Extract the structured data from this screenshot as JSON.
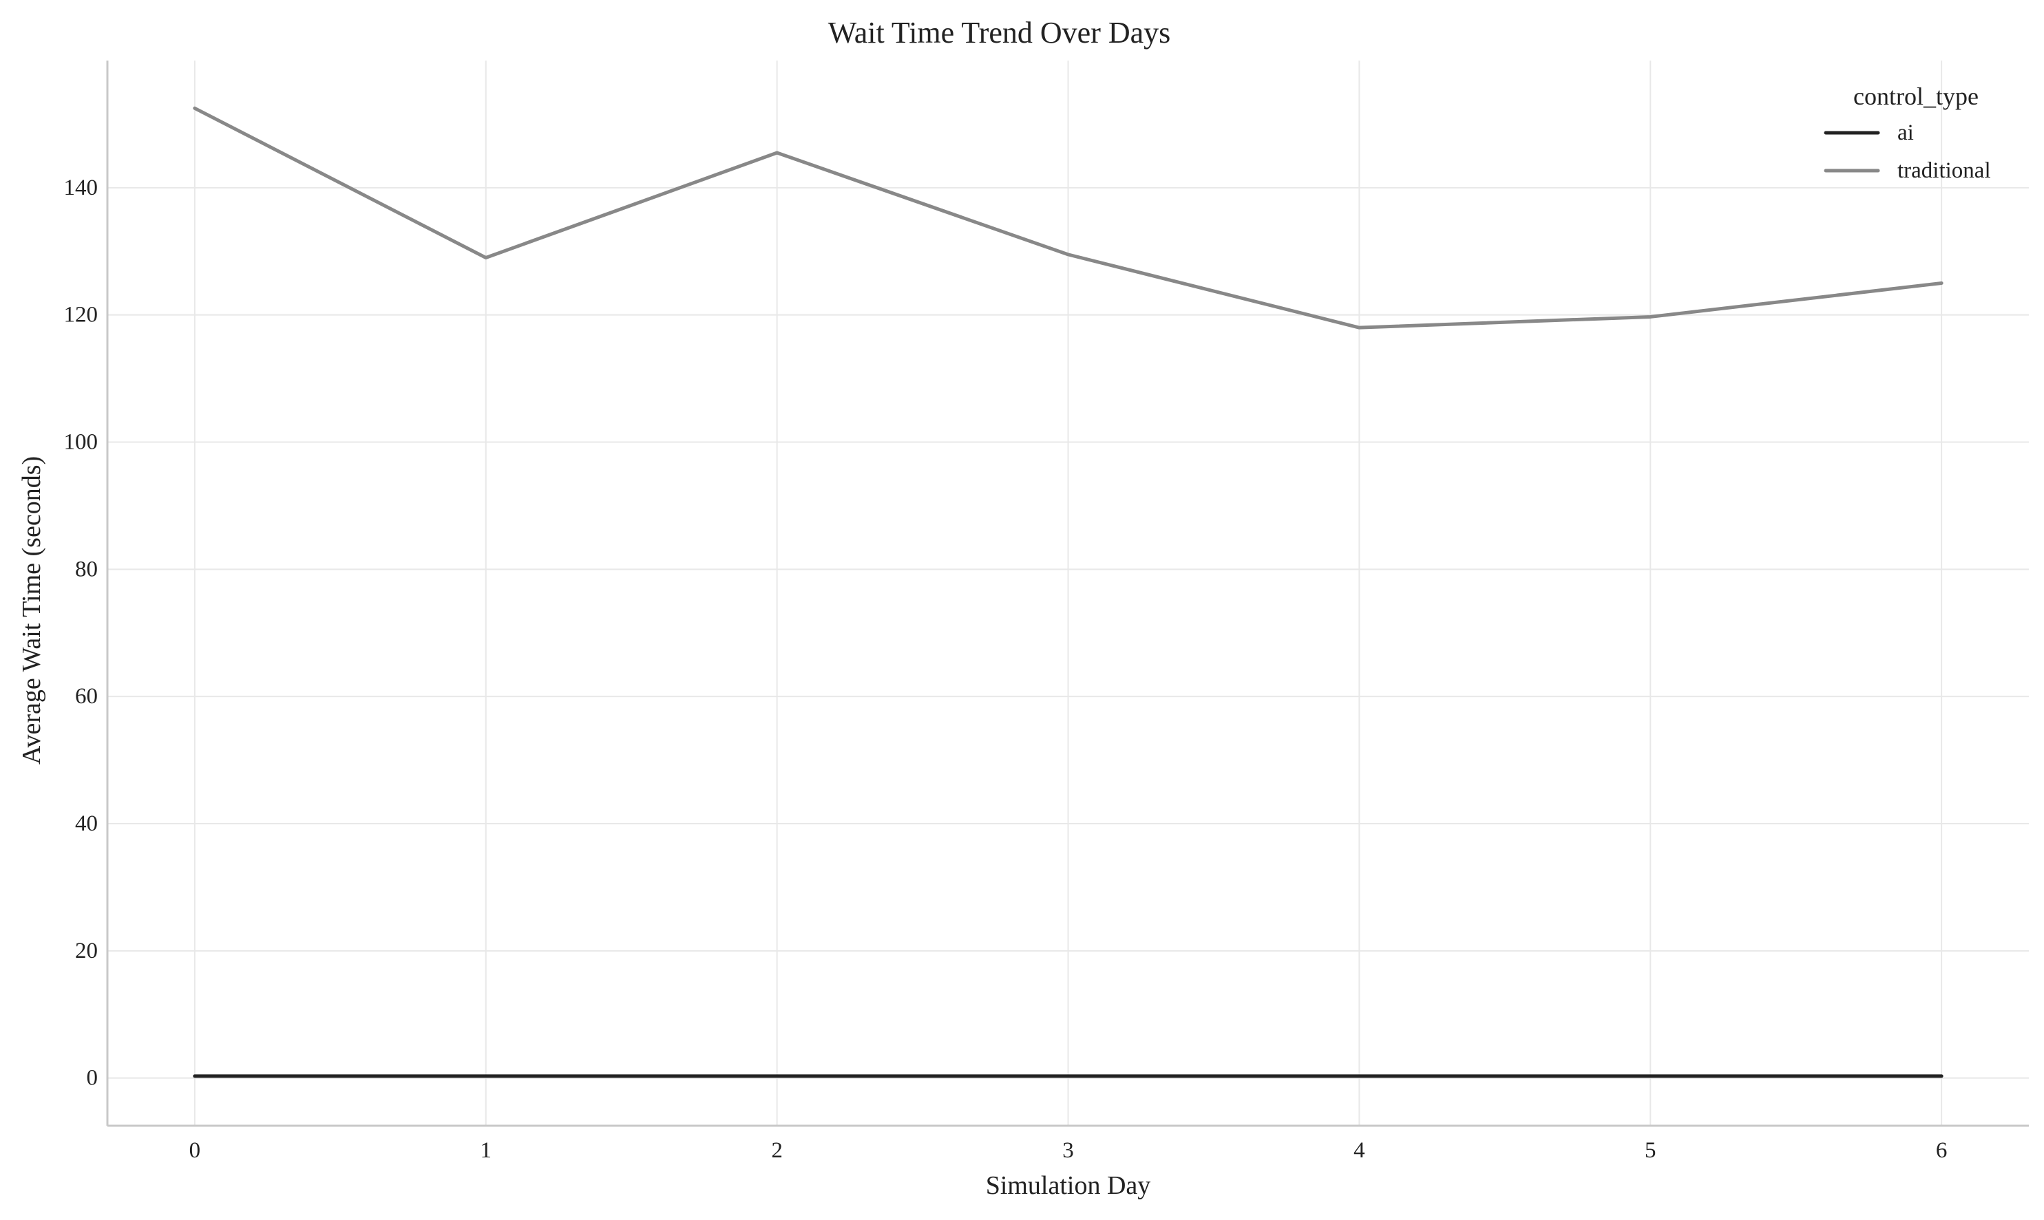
{
  "chart_data": {
    "type": "line",
    "title": "Wait Time Trend Over Days",
    "xlabel": "Simulation Day",
    "ylabel": "Average Wait Time (seconds)",
    "x": [
      0,
      1,
      2,
      3,
      4,
      5,
      6
    ],
    "xlim": [
      -0.3,
      6.3
    ],
    "ylim": [
      -7.5,
      160
    ],
    "xticks": [
      "0",
      "1",
      "2",
      "3",
      "4",
      "5",
      "6"
    ],
    "yticks": [
      "0",
      "20",
      "40",
      "60",
      "80",
      "100",
      "120",
      "140"
    ],
    "grid": true,
    "legend": {
      "title": "control_type",
      "placement": "top-right"
    },
    "series": [
      {
        "name": "ai",
        "color": "#222222",
        "values": [
          0.3,
          0.3,
          0.3,
          0.3,
          0.3,
          0.3,
          0.3
        ]
      },
      {
        "name": "traditional",
        "color": "#888888",
        "values": [
          152.5,
          129,
          145.5,
          129.5,
          118,
          119.7,
          125
        ]
      }
    ],
    "colors": {
      "grid": "#e8e8e8",
      "axis": "#c8c8c8",
      "text": "#222222"
    }
  }
}
